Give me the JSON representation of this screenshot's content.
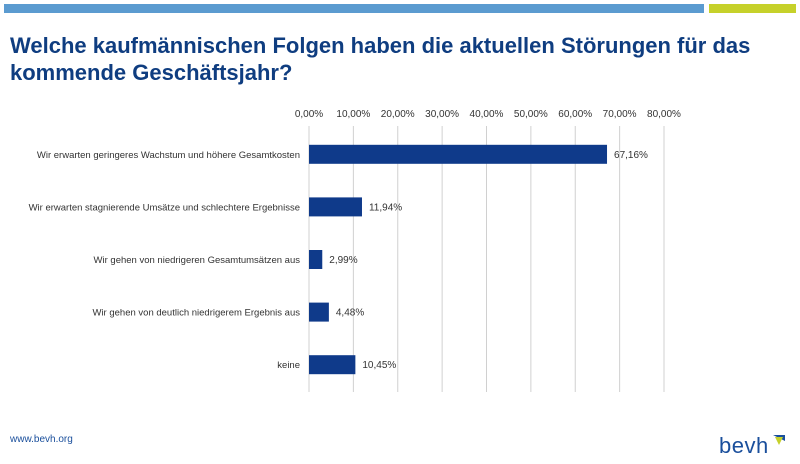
{
  "header": {
    "title": "Welche kaufmännischen Folgen haben die aktuellen Störungen für das kommende Geschäftsjahr?"
  },
  "footer": {
    "url": "www.bevh.org",
    "logo_text": "bevh"
  },
  "colors": {
    "accent_blue": "#5b9bd0",
    "accent_lime": "#c6d12a",
    "title": "#0f3d80",
    "bar": "#0f3a8a",
    "grid": "#d0d0d0",
    "text": "#333333",
    "logo_text": "#1a4f9c"
  },
  "chart_data": {
    "type": "bar",
    "orientation": "horizontal",
    "xlim": [
      0,
      80
    ],
    "ticks": [
      0,
      10,
      20,
      30,
      40,
      50,
      60,
      70,
      80
    ],
    "tick_labels": [
      "0,00%",
      "10,00%",
      "20,00%",
      "30,00%",
      "40,00%",
      "50,00%",
      "60,00%",
      "70,00%",
      "80,00%"
    ],
    "axis_position": "top",
    "grid": true,
    "categories": [
      "Wir erwarten geringeres Wachstum und höhere Gesamtkosten",
      "Wir erwarten stagnierende Umsätze und schlechtere Ergebnisse",
      "Wir gehen von niedrigeren Gesamtumsätzen aus",
      "Wir gehen von deutlich niedrigerem Ergebnis aus",
      "keine"
    ],
    "values": [
      67.16,
      11.94,
      2.99,
      4.48,
      10.45
    ],
    "value_labels": [
      "67,16%",
      "11,94%",
      "2,99%",
      "4,48%",
      "10,45%"
    ]
  }
}
